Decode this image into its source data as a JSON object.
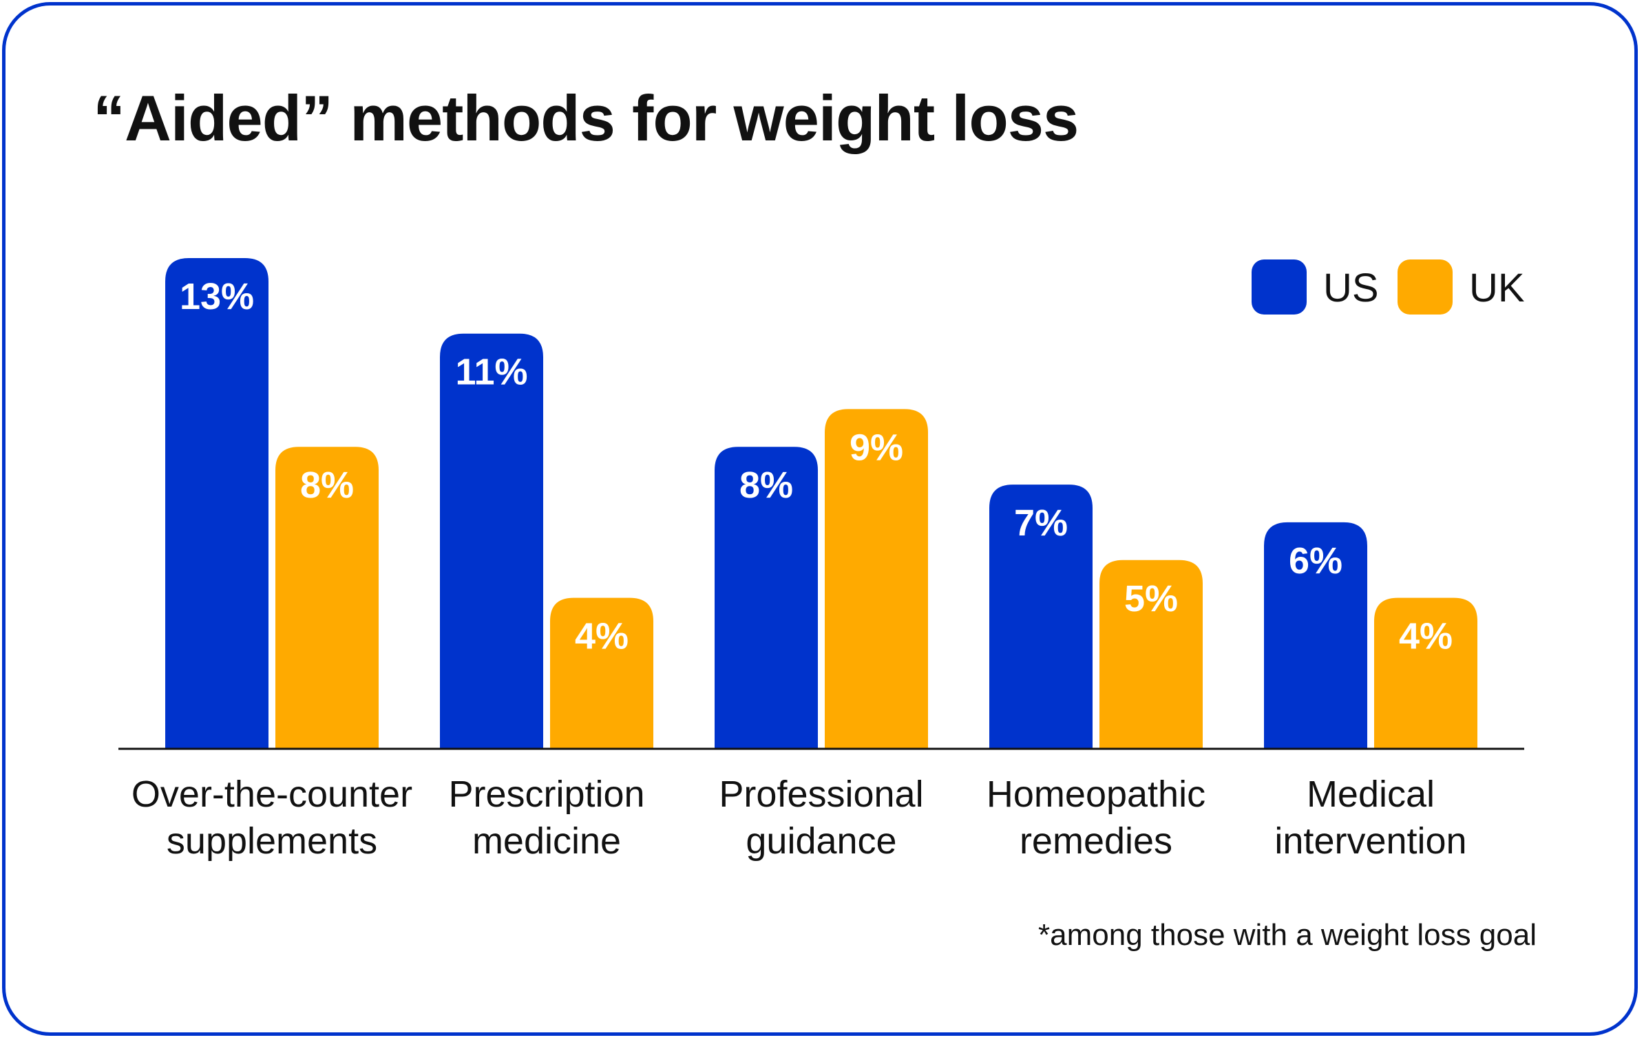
{
  "title": "“Aided” methods for weight loss",
  "footnote": "*among those with a weight loss goal",
  "colors": {
    "us": "#0033cc",
    "uk": "#ffaa00",
    "border": "#0033cc",
    "axis": "#111111"
  },
  "chart_data": {
    "type": "bar",
    "title": "“Aided” methods for weight loss",
    "categories": [
      [
        "Over-the-counter",
        "supplements"
      ],
      [
        "Prescription",
        "medicine"
      ],
      [
        "Professional",
        "guidance"
      ],
      [
        "Homeopathic",
        "remedies"
      ],
      [
        "Medical",
        "intervention"
      ]
    ],
    "series": [
      {
        "name": "US",
        "color": "#0033cc",
        "values": [
          13,
          11,
          8,
          7,
          6
        ],
        "labels": [
          "13%",
          "11%",
          "8%",
          "7%",
          "6%"
        ]
      },
      {
        "name": "UK",
        "color": "#ffaa00",
        "values": [
          8,
          4,
          9,
          5,
          4
        ],
        "labels": [
          "8%",
          "4%",
          "9%",
          "5%",
          "4%"
        ]
      }
    ],
    "xlabel": "",
    "ylabel": "",
    "ylim": [
      0,
      13
    ],
    "grid": false,
    "legend": "top-right"
  }
}
